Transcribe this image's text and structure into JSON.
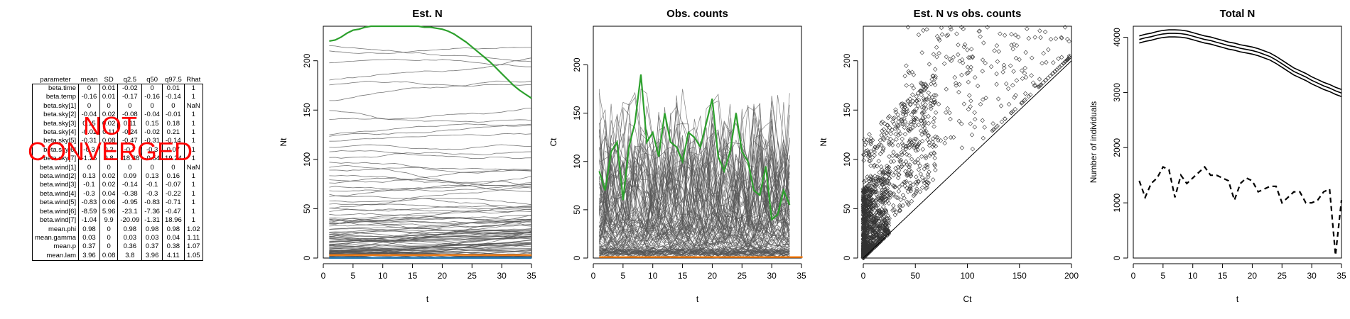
{
  "summary_table": {
    "headers": [
      "parameter",
      "mean",
      "SD",
      "q2.5",
      "q50",
      "q97.5",
      "Rhat"
    ],
    "rows": [
      [
        "beta.time",
        "0",
        "0.01",
        "-0.02",
        "0",
        "0.01",
        "1"
      ],
      [
        "beta.temp",
        "-0.16",
        "0.01",
        "-0.17",
        "-0.16",
        "-0.14",
        "1"
      ],
      [
        "beta.sky[1]",
        "0",
        "0",
        "0",
        "0",
        "0",
        "NaN"
      ],
      [
        "beta.sky[2]",
        "-0.04",
        "0.02",
        "-0.08",
        "-0.04",
        "-0.01",
        "1"
      ],
      [
        "beta.sky[3]",
        "0.15",
        "0.02",
        "0.11",
        "0.15",
        "0.18",
        "1"
      ],
      [
        "beta.sky[4]",
        "-0.02",
        "0.11",
        "-0.24",
        "-0.02",
        "0.21",
        "1"
      ],
      [
        "beta.sky[5]",
        "-0.31",
        "0.08",
        "-0.47",
        "-0.31",
        "-0.14",
        "1"
      ],
      [
        "beta.sky[6]",
        "-0.3",
        "0.2",
        "-0.7",
        "-0.3",
        "0.07",
        "1"
      ],
      [
        "beta.sky[7]",
        "-1.25",
        "9.8",
        "-18.38",
        "-0.54",
        "19.24",
        "1"
      ],
      [
        "beta.wind[1]",
        "0",
        "0",
        "0",
        "0",
        "0",
        "NaN"
      ],
      [
        "beta.wind[2]",
        "0.13",
        "0.02",
        "0.09",
        "0.13",
        "0.16",
        "1"
      ],
      [
        "beta.wind[3]",
        "-0.1",
        "0.02",
        "-0.14",
        "-0.1",
        "-0.07",
        "1"
      ],
      [
        "beta.wind[4]",
        "-0.3",
        "0.04",
        "-0.38",
        "-0.3",
        "-0.22",
        "1"
      ],
      [
        "beta.wind[5]",
        "-0.83",
        "0.06",
        "-0.95",
        "-0.83",
        "-0.71",
        "1"
      ],
      [
        "beta.wind[6]",
        "-8.59",
        "5.96",
        "-23.1",
        "-7.36",
        "-0.47",
        "1"
      ],
      [
        "beta.wind[7]",
        "-1.04",
        "9.9",
        "-20.09",
        "-1.31",
        "18.96",
        "1"
      ],
      [
        "mean.phi",
        "0.98",
        "0",
        "0.98",
        "0.98",
        "0.98",
        "1.02"
      ],
      [
        "mean.gamma",
        "0.03",
        "0",
        "0.03",
        "0.03",
        "0.04",
        "1.11"
      ],
      [
        "mean.p",
        "0.37",
        "0",
        "0.36",
        "0.37",
        "0.38",
        "1.07"
      ],
      [
        "mean.lam",
        "3.96",
        "0.08",
        "3.8",
        "3.96",
        "4.11",
        "1.05"
      ]
    ]
  },
  "stamp": {
    "line1": "NOT",
    "line2": "CONVERGED",
    "color": "#ff0000"
  },
  "colors": {
    "green": "#2ca02c",
    "orange": "#ff7f0e",
    "blue": "#1f77b4",
    "grey": "#555555"
  },
  "chart_data": [
    {
      "type": "line",
      "title": "Est. N",
      "xlabel": "t",
      "ylabel": "Nt",
      "xlim": [
        0,
        35
      ],
      "ylim": [
        0,
        235
      ],
      "xticks": [
        0,
        5,
        10,
        15,
        20,
        25,
        30,
        35
      ],
      "yticks": [
        0,
        50,
        100,
        150,
        200
      ],
      "x": [
        1,
        2,
        3,
        4,
        5,
        6,
        7,
        8,
        9,
        10,
        11,
        12,
        13,
        14,
        15,
        16,
        17,
        18,
        19,
        20,
        21,
        22,
        23,
        24,
        25,
        26,
        27,
        28,
        29,
        30,
        31,
        32,
        33,
        34,
        35
      ],
      "highlight_series": [
        {
          "name": "",
          "color": "green",
          "values": [
            220,
            221,
            224,
            228,
            231,
            232,
            234,
            235,
            235,
            235,
            235,
            235,
            235,
            235,
            235,
            235,
            234,
            234,
            233,
            232,
            230,
            227,
            223,
            219,
            214,
            209,
            204,
            199,
            193,
            187,
            181,
            175,
            170,
            166,
            162
          ]
        },
        {
          "name": "",
          "color": "orange",
          "values": [
            3,
            3,
            3,
            3,
            3,
            3,
            3,
            3,
            3,
            3,
            3,
            3,
            3,
            3,
            3,
            3,
            3,
            3,
            3,
            3,
            3,
            3,
            3,
            3,
            3,
            3,
            3,
            3,
            3,
            3,
            3,
            3,
            3,
            3,
            3
          ]
        },
        {
          "name": "",
          "color": "blue",
          "values": [
            0,
            0,
            0,
            0,
            0,
            0,
            0,
            0,
            0,
            0,
            0,
            0,
            0,
            0,
            0,
            0,
            0,
            0,
            0,
            0,
            0,
            0,
            0,
            0,
            0,
            0,
            0,
            0,
            0,
            0,
            0,
            0,
            0,
            0,
            0
          ]
        }
      ],
      "background_series": {
        "count": 110,
        "color": "grey",
        "starts_approx": [
          216,
          210,
          198,
          180,
          176,
          160,
          150,
          140,
          125,
          122,
          118,
          112,
          108,
          102,
          98,
          92,
          88,
          84,
          80,
          76,
          72,
          68,
          65,
          62,
          58,
          55,
          52,
          50,
          47,
          44,
          41,
          38,
          35,
          32,
          29,
          26,
          23,
          20,
          18,
          16,
          14,
          12,
          10,
          8,
          6,
          5,
          4,
          2
        ]
      }
    },
    {
      "type": "line",
      "title": "Obs. counts",
      "xlabel": "t",
      "ylabel": "Ct",
      "xlim": [
        0,
        35
      ],
      "ylim": [
        0,
        240
      ],
      "xticks": [
        0,
        5,
        10,
        15,
        20,
        25,
        30,
        35
      ],
      "yticks": [
        0,
        50,
        100,
        150,
        200
      ],
      "x": [
        1,
        2,
        3,
        4,
        5,
        6,
        7,
        8,
        9,
        10,
        11,
        12,
        13,
        14,
        15,
        16,
        17,
        18,
        19,
        20,
        21,
        22,
        23,
        24,
        25,
        26,
        27,
        28,
        29,
        30,
        31,
        32,
        33
      ],
      "highlight_series": [
        {
          "name": "",
          "color": "green",
          "values": [
            90,
            70,
            110,
            120,
            60,
            115,
            140,
            190,
            120,
            130,
            105,
            150,
            120,
            115,
            100,
            130,
            125,
            115,
            140,
            165,
            105,
            90,
            110,
            150,
            110,
            100,
            70,
            65,
            95,
            40,
            45,
            70,
            55
          ]
        },
        {
          "name": "",
          "color": "orange",
          "values": [
            1,
            1,
            1,
            1,
            1,
            1,
            1,
            1,
            1,
            1,
            1,
            1,
            1,
            1,
            1,
            1,
            1,
            1,
            1,
            1,
            1,
            1,
            1,
            1,
            1,
            1,
            1,
            1,
            1,
            1,
            1,
            1,
            1
          ]
        }
      ],
      "background_series": {
        "count": 110,
        "color": "grey",
        "max_approx": 197
      }
    },
    {
      "type": "scatter",
      "title": "Est. N vs obs. counts",
      "xlabel": "Ct",
      "ylabel": "Nt",
      "xlim": [
        0,
        200
      ],
      "ylim": [
        0,
        235
      ],
      "xticks": [
        0,
        50,
        100,
        150,
        200
      ],
      "yticks": [
        0,
        50,
        100,
        150,
        200
      ],
      "reference_line": "y = x",
      "n_points_approx": 3500
    },
    {
      "type": "line",
      "title": "Total N",
      "xlabel": "t",
      "ylabel": "Number of individuals",
      "xlim": [
        0,
        35
      ],
      "ylim": [
        0,
        4200
      ],
      "xticks": [
        0,
        5,
        10,
        15,
        20,
        25,
        30,
        35
      ],
      "yticks": [
        0,
        1000,
        2000,
        3000,
        4000
      ],
      "x": [
        1,
        2,
        3,
        4,
        5,
        6,
        7,
        8,
        9,
        10,
        11,
        12,
        13,
        14,
        15,
        16,
        17,
        18,
        19,
        20,
        21,
        22,
        23,
        24,
        25,
        26,
        27,
        28,
        29,
        30,
        31,
        32,
        33,
        34,
        35
      ],
      "series": [
        {
          "name": "",
          "style": "solid",
          "values": [
            3960,
            3990,
            4010,
            4040,
            4060,
            4070,
            4070,
            4065,
            4050,
            4020,
            3990,
            3960,
            3940,
            3910,
            3880,
            3850,
            3830,
            3800,
            3780,
            3760,
            3730,
            3690,
            3650,
            3590,
            3520,
            3450,
            3380,
            3330,
            3280,
            3220,
            3170,
            3120,
            3080,
            3030,
            2990
          ]
        },
        {
          "name": "",
          "style": "dashed",
          "values": [
            1400,
            1100,
            1350,
            1450,
            1650,
            1600,
            1100,
            1500,
            1350,
            1450,
            1550,
            1650,
            1500,
            1500,
            1450,
            1400,
            1050,
            1350,
            1450,
            1400,
            1200,
            1250,
            1300,
            1300,
            1000,
            1100,
            1200,
            1200,
            1000,
            1000,
            1050,
            1200,
            1250,
            50,
            1050
          ]
        }
      ]
    }
  ]
}
